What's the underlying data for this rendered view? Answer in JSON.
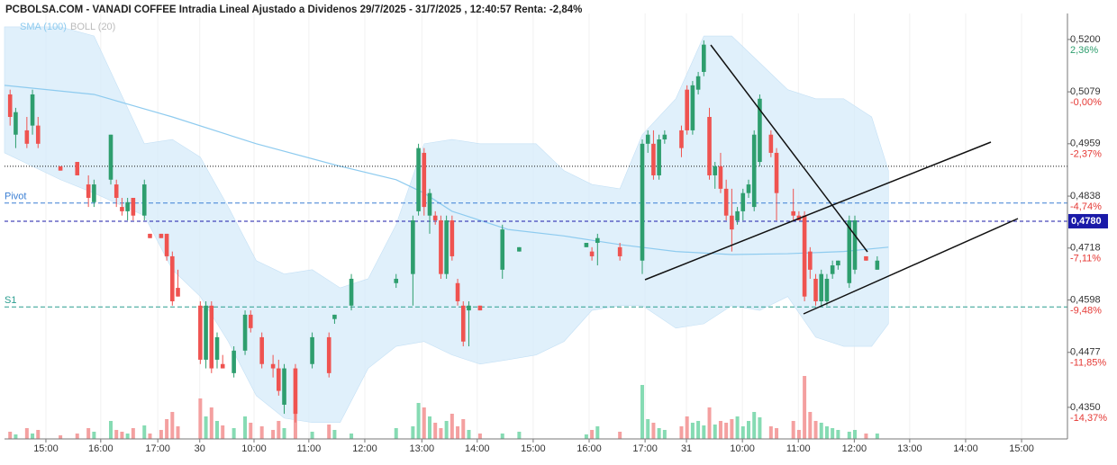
{
  "chart_data": {
    "type": "candlestick",
    "title": "PCBOLSA.COM - VANADI COFFEE Intradia Lineal Ajustado a Dividenos 29/7/2025 - 31/7/2025 , 12:40:57 Renta: -2,84%",
    "up_color": "#2e9e6e",
    "down_color": "#ef5350",
    "volume_up_color": "#86dbb3",
    "volume_down_color": "#f4a0a0",
    "xlim": [
      0,
      190
    ],
    "ylim": [
      0.4277,
      0.526
    ],
    "xticks": [
      {
        "value": 7.4,
        "label": "15:00"
      },
      {
        "value": 17.2,
        "label": "16:00"
      },
      {
        "value": 27.4,
        "label": "17:00"
      },
      {
        "value": 34.9,
        "label": "30"
      },
      {
        "value": 44.6,
        "label": "10:00"
      },
      {
        "value": 54.4,
        "label": "11:00"
      },
      {
        "value": 64.4,
        "label": "12:00"
      },
      {
        "value": 74.6,
        "label": "13:00"
      },
      {
        "value": 84.5,
        "label": "14:00"
      },
      {
        "value": 94.5,
        "label": "15:00"
      },
      {
        "value": 104.5,
        "label": "16:00"
      },
      {
        "value": 114.5,
        "label": "17:00"
      },
      {
        "value": 121.9,
        "label": "31"
      },
      {
        "value": 131.9,
        "label": "10:00"
      },
      {
        "value": 141.9,
        "label": "11:00"
      },
      {
        "value": 151.9,
        "label": "12:00"
      },
      {
        "value": 161.8,
        "label": "13:00"
      },
      {
        "value": 171.8,
        "label": "14:00"
      },
      {
        "value": 181.8,
        "label": "15:00"
      }
    ],
    "yticks": [
      {
        "value": 0.52,
        "label": "0,5200"
      },
      {
        "value": 0.5079,
        "label": "0,5079"
      },
      {
        "value": 0.4959,
        "label": "0,4959"
      },
      {
        "value": 0.4838,
        "label": "0,4838"
      },
      {
        "value": 0.4718,
        "label": "0,4718"
      },
      {
        "value": 0.4598,
        "label": "0,4598"
      },
      {
        "value": 0.4477,
        "label": "0,4477"
      },
      {
        "value": 0.435,
        "label": "0,4350"
      }
    ],
    "ytick_changes": [
      "2,36%",
      "-0,00%",
      "-2,37%",
      "-4,74%",
      "-7,11%",
      "-9,48%",
      "-11,85%",
      "-14,37%"
    ],
    "levels": [
      {
        "name": "Pivot",
        "value": 0.4822,
        "color": "#3b7fd4"
      },
      {
        "name": "S1",
        "value": 0.4582,
        "color": "#2a9d8f"
      }
    ],
    "dotted_level": 0.4907,
    "price_line": {
      "value": 0.478,
      "label": "0,4780",
      "color": "#1a1aa8"
    },
    "x": [
      1,
      2,
      4,
      5,
      6,
      10,
      13,
      15,
      16,
      19,
      20,
      21,
      22,
      23,
      25,
      26,
      28,
      29,
      30,
      31,
      35,
      36,
      37,
      38,
      39,
      41,
      43,
      44,
      46,
      48,
      49,
      50,
      52,
      55,
      58,
      59,
      62,
      70,
      73,
      74,
      75,
      76,
      77,
      78,
      79,
      80,
      81,
      82,
      83,
      85,
      89,
      92,
      104,
      105,
      106,
      110,
      114,
      115,
      116,
      117,
      118,
      121,
      122,
      123,
      124,
      125,
      126,
      127,
      128,
      129,
      130,
      131,
      132,
      133,
      134,
      135,
      137,
      138,
      141,
      142,
      143,
      144,
      145,
      146,
      147,
      148,
      149,
      151,
      152,
      154,
      156
    ],
    "open": [
      0.5073,
      0.498,
      0.499,
      0.5001,
      0.5001,
      0.4907,
      0.4917,
      0.4865,
      0.4824,
      0.4876,
      0.4865,
      0.4813,
      0.4803,
      0.4834,
      0.4793,
      0.4751,
      0.4751,
      0.4751,
      0.4699,
      0.4626,
      0.4585,
      0.446,
      0.4585,
      0.446,
      0.445,
      0.4429,
      0.4481,
      0.4564,
      0.4512,
      0.445,
      0.444,
      0.4356,
      0.444,
      0.445,
      0.4512,
      0.4554,
      0.4585,
      0.4637,
      0.4658,
      0.4803,
      0.4938,
      0.4793,
      0.4793,
      0.4782,
      0.4658,
      0.4782,
      0.4637,
      0.4585,
      0.4574,
      0.4585,
      0.4668,
      0.471,
      0.472,
      0.471,
      0.473,
      0.472,
      0.4689,
      0.4959,
      0.4959,
      0.4886,
      0.4969,
      0.499,
      0.5084,
      0.499,
      0.5084,
      0.5125,
      0.5021,
      0.4886,
      0.4907,
      0.4855,
      0.4793,
      0.4782,
      0.4803,
      0.4845,
      0.4813,
      0.4917,
      0.498,
      0.4938,
      0.4803,
      0.4793,
      0.4793,
      0.471,
      0.4647,
      0.4595,
      0.4595,
      0.4658,
      0.4678,
      0.4637,
      0.4668,
      0.4699,
      0.4668
    ],
    "high": [
      0.5084,
      0.5042,
      0.5021,
      0.5084,
      0.5021,
      0.4907,
      0.4917,
      0.4886,
      0.4876,
      0.498,
      0.4876,
      0.4834,
      0.4834,
      0.4834,
      0.4876,
      0.4751,
      0.4751,
      0.4751,
      0.471,
      0.4668,
      0.4595,
      0.4595,
      0.4595,
      0.4523,
      0.4471,
      0.4491,
      0.4574,
      0.4574,
      0.4523,
      0.4471,
      0.446,
      0.445,
      0.445,
      0.4523,
      0.4523,
      0.4564,
      0.4658,
      0.4658,
      0.4793,
      0.4959,
      0.4949,
      0.4855,
      0.4803,
      0.4793,
      0.4793,
      0.4793,
      0.4647,
      0.4595,
      0.4595,
      0.4585,
      0.4772,
      0.472,
      0.473,
      0.472,
      0.4751,
      0.473,
      0.4969,
      0.499,
      0.499,
      0.498,
      0.499,
      0.5001,
      0.5094,
      0.5104,
      0.5125,
      0.5198,
      0.5042,
      0.4917,
      0.4938,
      0.4876,
      0.4855,
      0.4813,
      0.4855,
      0.4876,
      0.499,
      0.5073,
      0.499,
      0.4949,
      0.4855,
      0.4803,
      0.4803,
      0.472,
      0.4658,
      0.4668,
      0.4658,
      0.4689,
      0.4689,
      0.4793,
      0.4793,
      0.4699,
      0.4699
    ],
    "low": [
      0.5001,
      0.4949,
      0.4949,
      0.498,
      0.4949,
      0.4897,
      0.4886,
      0.4813,
      0.4813,
      0.4865,
      0.4813,
      0.4793,
      0.4782,
      0.4782,
      0.4782,
      0.4741,
      0.4741,
      0.4689,
      0.4585,
      0.4606,
      0.445,
      0.444,
      0.4429,
      0.444,
      0.444,
      0.4419,
      0.4471,
      0.4523,
      0.444,
      0.4419,
      0.4377,
      0.4335,
      0.4315,
      0.444,
      0.4419,
      0.4543,
      0.4574,
      0.4626,
      0.4585,
      0.4793,
      0.4793,
      0.4751,
      0.4772,
      0.4647,
      0.4647,
      0.4689,
      0.4585,
      0.4491,
      0.4491,
      0.4574,
      0.4647,
      0.471,
      0.472,
      0.4689,
      0.4678,
      0.4689,
      0.4658,
      0.4938,
      0.4876,
      0.4876,
      0.4959,
      0.4928,
      0.498,
      0.498,
      0.5073,
      0.5115,
      0.4876,
      0.4855,
      0.4845,
      0.4782,
      0.471,
      0.4772,
      0.4782,
      0.4834,
      0.4803,
      0.4907,
      0.4928,
      0.4782,
      0.4782,
      0.4782,
      0.4595,
      0.4647,
      0.4585,
      0.4585,
      0.4585,
      0.4647,
      0.4668,
      0.4626,
      0.4658,
      0.4689,
      0.4668
    ],
    "close": [
      0.5021,
      0.5032,
      0.4959,
      0.5073,
      0.4959,
      0.4897,
      0.4886,
      0.4834,
      0.4865,
      0.498,
      0.4834,
      0.4803,
      0.4824,
      0.4793,
      0.4865,
      0.4741,
      0.4741,
      0.4699,
      0.4595,
      0.4606,
      0.446,
      0.4585,
      0.444,
      0.4512,
      0.444,
      0.4481,
      0.4564,
      0.4533,
      0.445,
      0.444,
      0.4388,
      0.444,
      0.4335,
      0.4512,
      0.4429,
      0.4564,
      0.4647,
      0.4647,
      0.4782,
      0.4949,
      0.4813,
      0.4845,
      0.4782,
      0.4658,
      0.4782,
      0.4699,
      0.4595,
      0.4502,
      0.4585,
      0.4574,
      0.4761,
      0.472,
      0.473,
      0.4699,
      0.4741,
      0.4699,
      0.4959,
      0.498,
      0.4886,
      0.4969,
      0.498,
      0.4949,
      0.499,
      0.5094,
      0.5115,
      0.5188,
      0.4886,
      0.4907,
      0.4855,
      0.4793,
      0.4761,
      0.4803,
      0.4845,
      0.4865,
      0.498,
      0.5063,
      0.4938,
      0.4845,
      0.4793,
      0.4782,
      0.4606,
      0.4668,
      0.4595,
      0.4658,
      0.4647,
      0.4678,
      0.4689,
      0.4782,
      0.4782,
      0.4689,
      0.4689
    ],
    "volume": [
      8,
      5,
      12,
      6,
      10,
      4,
      6,
      12,
      8,
      20,
      10,
      8,
      6,
      12,
      15,
      6,
      10,
      22,
      30,
      14,
      45,
      25,
      35,
      20,
      15,
      12,
      25,
      18,
      14,
      10,
      20,
      12,
      30,
      8,
      16,
      10,
      6,
      12,
      14,
      40,
      35,
      25,
      18,
      12,
      20,
      28,
      14,
      22,
      10,
      6,
      6,
      8,
      5,
      10,
      14,
      8,
      60,
      22,
      18,
      12,
      10,
      14,
      25,
      18,
      20,
      15,
      35,
      16,
      20,
      18,
      22,
      25,
      14,
      20,
      30,
      24,
      14,
      12,
      20,
      10,
      70,
      30,
      20,
      18,
      14,
      12,
      10,
      8,
      10,
      6,
      6
    ],
    "bollinger": {
      "name": "BOLL (20)",
      "color": "#d6ebfa",
      "text_color": "#bbbbbb",
      "x": [
        0,
        10,
        16,
        25,
        30,
        35,
        40,
        45,
        50,
        55,
        60,
        65,
        70,
        75,
        80,
        85,
        90,
        95,
        100,
        105,
        110,
        114,
        120,
        125,
        130,
        135,
        140,
        145,
        150,
        155,
        158
      ],
      "upper": [
        0.5229,
        0.5229,
        0.5208,
        0.4959,
        0.4969,
        0.4928,
        0.4813,
        0.4689,
        0.4658,
        0.4668,
        0.4626,
        0.4647,
        0.4772,
        0.4959,
        0.4969,
        0.4959,
        0.4959,
        0.4959,
        0.4897,
        0.4865,
        0.4855,
        0.498,
        0.5063,
        0.5208,
        0.5208,
        0.5146,
        0.5084,
        0.5063,
        0.5063,
        0.5021,
        0.4897
      ],
      "lower": [
        0.4938,
        0.4876,
        0.4845,
        0.4793,
        0.4668,
        0.4606,
        0.4502,
        0.4377,
        0.4325,
        0.4315,
        0.4315,
        0.444,
        0.4491,
        0.4502,
        0.4471,
        0.445,
        0.446,
        0.4471,
        0.4502,
        0.4574,
        0.4585,
        0.4585,
        0.4533,
        0.4543,
        0.4585,
        0.4574,
        0.4606,
        0.4512,
        0.4491,
        0.4491,
        0.4543
      ]
    },
    "sma": {
      "name": "SMA (100)",
      "color": "#8ecbef",
      "x": [
        0,
        16,
        30,
        45,
        60,
        70,
        75,
        80,
        90,
        100,
        110,
        120,
        130,
        140,
        150,
        158
      ],
      "values": [
        0.5094,
        0.5073,
        0.5021,
        0.4959,
        0.4907,
        0.4876,
        0.4845,
        0.4803,
        0.4761,
        0.4746,
        0.4726,
        0.471,
        0.4703,
        0.4705,
        0.471,
        0.472
      ]
    }
  }
}
